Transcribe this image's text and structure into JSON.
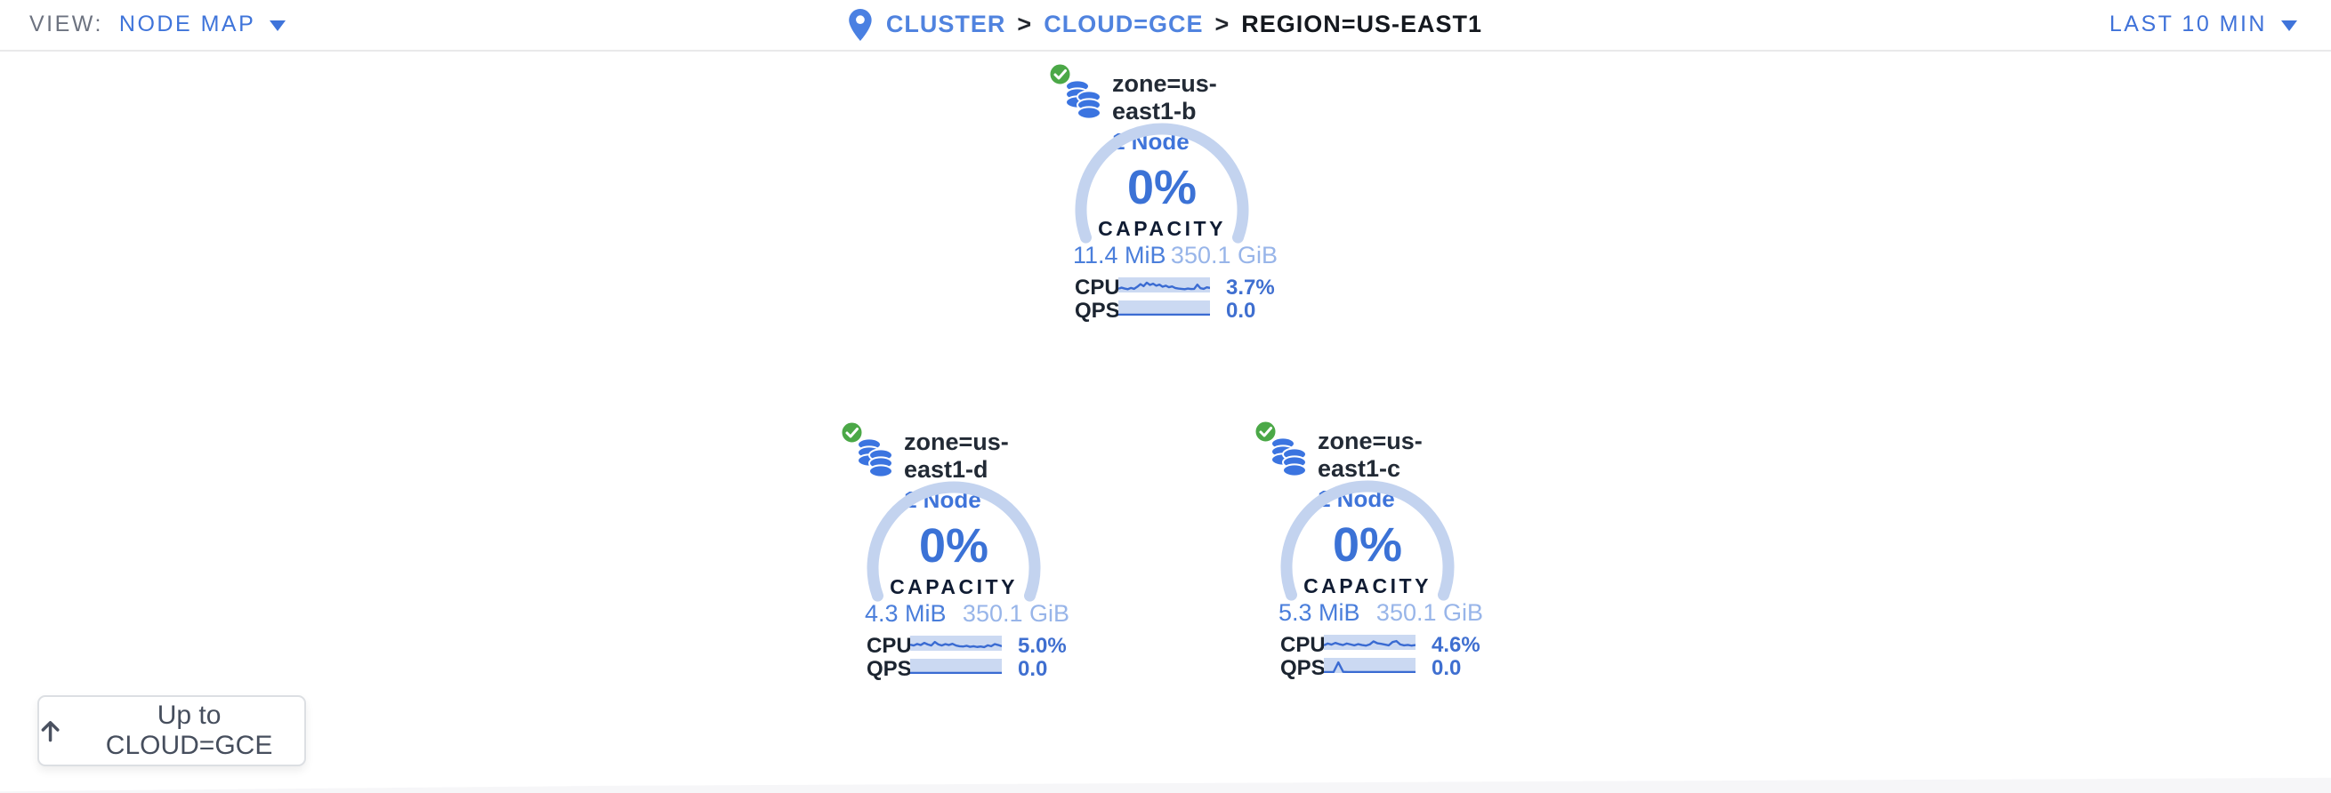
{
  "header": {
    "view_label": "VIEW:",
    "view_value": "NODE MAP",
    "breadcrumb_separator": ">",
    "breadcrumb": [
      {
        "label": "CLUSTER"
      },
      {
        "label": "CLOUD=GCE"
      },
      {
        "label": "REGION=US-EAST1"
      }
    ],
    "time_range": "LAST 10 MIN"
  },
  "zones": [
    {
      "name": "zone=us-east1-b",
      "node_count": "1 Node",
      "status": "healthy",
      "capacity_pct": "0%",
      "capacity_label": "CAPACITY",
      "capacity_used": "11.4 MiB",
      "capacity_total": "350.1 GiB",
      "cpu_label": "CPU",
      "cpu_value": "3.7%",
      "qps_label": "QPS",
      "qps_value": "0.0",
      "cpu_sparkline": [
        25,
        32,
        26,
        22,
        30,
        24,
        38,
        55,
        42,
        65,
        50,
        58,
        45,
        52,
        38,
        45,
        35,
        40,
        30,
        26,
        24,
        22,
        26,
        23,
        24,
        52,
        28,
        24,
        34,
        30
      ],
      "qps_sparkline": [
        6,
        6,
        6,
        6,
        6,
        6,
        6,
        6,
        6,
        6,
        6,
        6,
        6,
        6,
        6,
        6,
        6,
        6,
        6,
        6
      ]
    },
    {
      "name": "zone=us-east1-d",
      "node_count": "1 Node",
      "status": "healthy",
      "capacity_pct": "0%",
      "capacity_label": "CAPACITY",
      "capacity_used": "4.3 MiB",
      "capacity_total": "350.1 GiB",
      "cpu_label": "CPU",
      "cpu_value": "5.0%",
      "qps_label": "QPS",
      "qps_value": "0.0",
      "cpu_sparkline": [
        40,
        35,
        45,
        38,
        52,
        42,
        35,
        58,
        42,
        35,
        44,
        38,
        46,
        35,
        30,
        28,
        33,
        26,
        30,
        25,
        28,
        24,
        36,
        30,
        44,
        38,
        30
      ],
      "qps_sparkline": [
        6,
        6,
        6,
        6,
        6,
        6,
        6,
        6,
        6,
        6,
        6,
        6,
        6,
        6,
        6,
        6,
        6,
        6,
        6,
        6
      ]
    },
    {
      "name": "zone=us-east1-c",
      "node_count": "1 Node",
      "status": "healthy",
      "capacity_pct": "0%",
      "capacity_label": "CAPACITY",
      "capacity_used": "5.3 MiB",
      "capacity_total": "350.1 GiB",
      "cpu_label": "CPU",
      "cpu_value": "4.6%",
      "qps_label": "QPS",
      "qps_value": "0.0",
      "cpu_sparkline": [
        30,
        42,
        35,
        46,
        38,
        32,
        42,
        36,
        30,
        38,
        32,
        28,
        36,
        56,
        44,
        40,
        35,
        30,
        52,
        58,
        36,
        30,
        33,
        28,
        32
      ],
      "qps_sparkline": [
        6,
        6,
        6,
        70,
        8,
        6,
        6,
        6,
        6,
        6,
        6,
        6,
        6,
        6,
        6,
        6,
        6,
        6,
        6,
        6
      ]
    }
  ],
  "up_button": {
    "label": "Up to CLOUD=GCE",
    "icon": "arrow-up"
  },
  "colors": {
    "accent_blue": "#3f72d9",
    "link_blue": "#5083df",
    "gauge_ring": "#c3d3ef",
    "sparkline_fill": "#cbd9f2",
    "sparkline_line": "#3a6bd2",
    "capacity_total_blue": "#98b5e9",
    "capacity_used_blue": "#4a7edb",
    "healthy_green": "#4ba847",
    "dark_text": "#1b2430"
  }
}
